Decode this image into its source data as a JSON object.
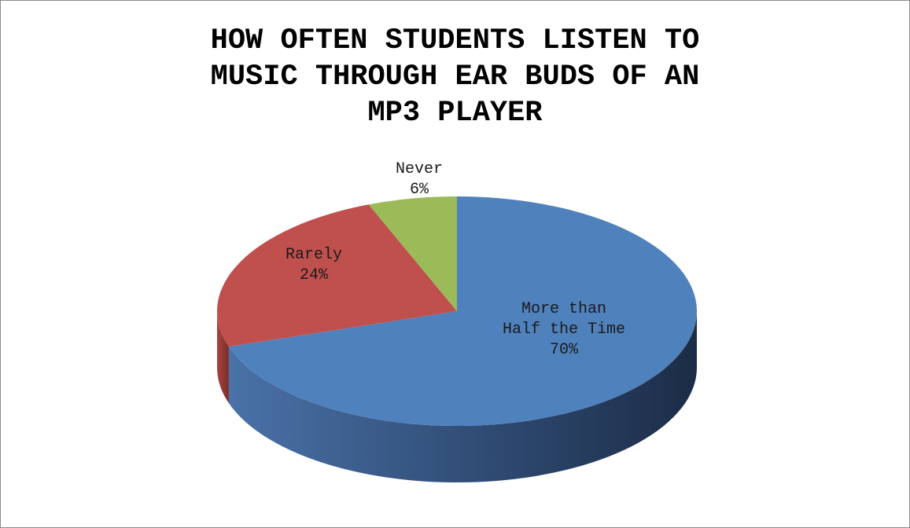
{
  "chart_data": {
    "type": "pie",
    "title_lines": [
      "HOW OFTEN STUDENTS LISTEN TO",
      "MUSIC THROUGH EAR BUDS OF AN",
      "MP3 PLAYER"
    ],
    "slices": [
      {
        "label_lines": [
          "More than",
          "Half the Time"
        ],
        "value": 70,
        "value_label": "70%",
        "color": "#4f81bd"
      },
      {
        "label_lines": [
          "Rarely"
        ],
        "value": 24,
        "value_label": "24%",
        "color": "#c0504d"
      },
      {
        "label_lines": [
          "Never"
        ],
        "value": 6,
        "value_label": "6%",
        "color": "#9bbb59"
      }
    ],
    "legend": "none",
    "three_d": true
  }
}
